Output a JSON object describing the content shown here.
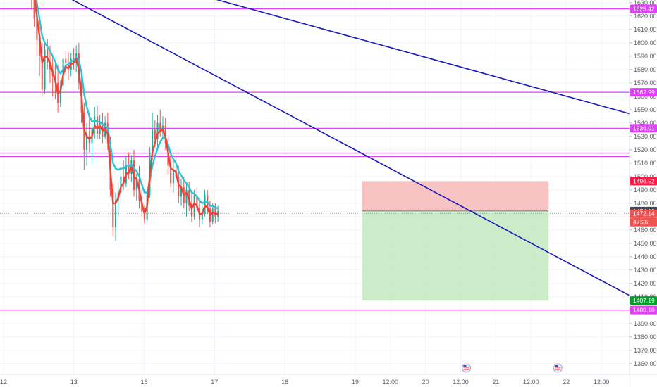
{
  "chart_data": {
    "type": "candlestick",
    "title": "",
    "y_axis": {
      "range": [
        1352,
        1632
      ],
      "ticks": [
        1360,
        1370,
        1380,
        1390,
        1400,
        1410,
        1420,
        1430,
        1440,
        1450,
        1460,
        1470,
        1480,
        1490,
        1500,
        1510,
        1520,
        1530,
        1540,
        1550,
        1560,
        1570,
        1580,
        1590,
        1600,
        1610,
        1620,
        1630
      ]
    },
    "x_axis": {
      "ticks": [
        {
          "label": "12",
          "t": 0
        },
        {
          "label": "13",
          "t": 1
        },
        {
          "label": "16",
          "t": 2
        },
        {
          "label": "17",
          "t": 3
        },
        {
          "label": "18",
          "t": 4
        },
        {
          "label": "19",
          "t": 5
        },
        {
          "label": "12:00",
          "t": 5.5
        },
        {
          "label": "20",
          "t": 6
        },
        {
          "label": "12:00",
          "t": 6.5
        },
        {
          "label": "21",
          "t": 7
        },
        {
          "label": "12:00",
          "t": 7.5
        },
        {
          "label": "22",
          "t": 8
        },
        {
          "label": "12:00",
          "t": 8.5
        }
      ],
      "range_t": [
        -0.05,
        8.9
      ]
    },
    "horizontal_levels": [
      {
        "value": 1625.42,
        "label": "1625.42",
        "color": "#e040fb"
      },
      {
        "value": 1562.99,
        "label": "1562.99",
        "color": "#e040fb"
      },
      {
        "value": 1536.01,
        "label": "1536.01",
        "color": "#e040fb"
      },
      {
        "value": 1517.5,
        "label": "",
        "color": "#e040fb"
      },
      {
        "value": 1515.0,
        "label": "",
        "color": "#e040fb"
      },
      {
        "value": 1400.1,
        "label": "1400.10",
        "color": "#e040fb"
      }
    ],
    "price_labels": [
      {
        "value": 1496.52,
        "label": "1496.52",
        "color": "#ff1744"
      },
      {
        "value": 1474.19,
        "label": "1474.19",
        "color": "#434651"
      },
      {
        "value": 1472.14,
        "label": "1472.14",
        "color": "#ef5350"
      },
      {
        "value": 1407.19,
        "label": "1407.19",
        "color": "#00a028"
      }
    ],
    "countdown_label": "47:26",
    "trendlines": [
      {
        "t1": 0.52,
        "v1": 1645,
        "t2": 8.9,
        "v2": 1411,
        "color": "#1a1ab8"
      },
      {
        "t1": 2.5,
        "v1": 1640,
        "t2": 8.9,
        "v2": 1547,
        "color": "#1a1ab8"
      }
    ],
    "position": {
      "t_start": 5.1,
      "t_end": 7.75,
      "entry": 1474.19,
      "stop": 1496.52,
      "target": 1407.19,
      "risk_color": "#f7b9b9",
      "reward_color": "#c3e9c0"
    },
    "ohlc_t0": 0.4,
    "ohlc_dt": 0.0373,
    "ohlc": [
      [
        1650,
        1652,
        1625,
        1632
      ],
      [
        1632,
        1635,
        1612,
        1618
      ],
      [
        1618,
        1628,
        1590,
        1602
      ],
      [
        1602,
        1612,
        1575,
        1590
      ],
      [
        1590,
        1600,
        1560,
        1565
      ],
      [
        1565,
        1600,
        1562,
        1595
      ],
      [
        1595,
        1603,
        1580,
        1585
      ],
      [
        1585,
        1598,
        1570,
        1580
      ],
      [
        1580,
        1590,
        1560,
        1575
      ],
      [
        1575,
        1585,
        1558,
        1570
      ],
      [
        1570,
        1583,
        1548,
        1555
      ],
      [
        1555,
        1572,
        1552,
        1568
      ],
      [
        1568,
        1590,
        1565,
        1588
      ],
      [
        1588,
        1594,
        1578,
        1585
      ],
      [
        1585,
        1593,
        1572,
        1580
      ],
      [
        1580,
        1592,
        1575,
        1588
      ],
      [
        1588,
        1596,
        1580,
        1585
      ],
      [
        1585,
        1598,
        1578,
        1592
      ],
      [
        1592,
        1600,
        1565,
        1570
      ],
      [
        1570,
        1578,
        1540,
        1548
      ],
      [
        1548,
        1555,
        1505,
        1520
      ],
      [
        1520,
        1540,
        1508,
        1530
      ],
      [
        1530,
        1545,
        1518,
        1525
      ],
      [
        1525,
        1540,
        1510,
        1535
      ],
      [
        1535,
        1552,
        1528,
        1545
      ],
      [
        1545,
        1553,
        1528,
        1532
      ],
      [
        1532,
        1546,
        1528,
        1540
      ],
      [
        1540,
        1548,
        1525,
        1530
      ],
      [
        1530,
        1545,
        1528,
        1540
      ],
      [
        1540,
        1548,
        1520,
        1525
      ],
      [
        1525,
        1530,
        1485,
        1490
      ],
      [
        1490,
        1495,
        1455,
        1462
      ],
      [
        1462,
        1488,
        1452,
        1482
      ],
      [
        1482,
        1495,
        1470,
        1488
      ],
      [
        1488,
        1505,
        1480,
        1500
      ],
      [
        1500,
        1512,
        1490,
        1495
      ],
      [
        1495,
        1515,
        1492,
        1508
      ],
      [
        1508,
        1518,
        1498,
        1502
      ],
      [
        1502,
        1516,
        1496,
        1512
      ],
      [
        1512,
        1520,
        1485,
        1490
      ],
      [
        1490,
        1502,
        1482,
        1498
      ],
      [
        1498,
        1508,
        1476,
        1482
      ],
      [
        1482,
        1490,
        1470,
        1474
      ],
      [
        1474,
        1478,
        1465,
        1468
      ],
      [
        1468,
        1490,
        1466,
        1486
      ],
      [
        1486,
        1522,
        1484,
        1518
      ],
      [
        1518,
        1548,
        1512,
        1535
      ],
      [
        1535,
        1542,
        1522,
        1528
      ],
      [
        1528,
        1546,
        1520,
        1540
      ],
      [
        1540,
        1550,
        1530,
        1534
      ],
      [
        1534,
        1545,
        1528,
        1538
      ],
      [
        1538,
        1544,
        1520,
        1525
      ],
      [
        1525,
        1530,
        1502,
        1508
      ],
      [
        1508,
        1518,
        1492,
        1495
      ],
      [
        1495,
        1512,
        1488,
        1505
      ],
      [
        1505,
        1515,
        1490,
        1500
      ],
      [
        1500,
        1508,
        1480,
        1485
      ],
      [
        1485,
        1498,
        1478,
        1492
      ],
      [
        1492,
        1500,
        1476,
        1480
      ],
      [
        1480,
        1494,
        1470,
        1490
      ],
      [
        1490,
        1496,
        1474,
        1478
      ],
      [
        1478,
        1488,
        1466,
        1470
      ],
      [
        1470,
        1490,
        1468,
        1486
      ],
      [
        1486,
        1492,
        1472,
        1476
      ],
      [
        1476,
        1484,
        1462,
        1468
      ],
      [
        1468,
        1478,
        1464,
        1472
      ],
      [
        1472,
        1490,
        1470,
        1486
      ],
      [
        1486,
        1490,
        1472,
        1476
      ],
      [
        1476,
        1482,
        1462,
        1466
      ],
      [
        1466,
        1480,
        1464,
        1476
      ],
      [
        1476,
        1480,
        1465,
        1470
      ],
      [
        1470,
        1478,
        1466,
        1474
      ]
    ],
    "ema_fast": {
      "color": "#ef4035",
      "values": [
        1645,
        1636,
        1620,
        1605,
        1585,
        1590,
        1589,
        1585,
        1578,
        1572,
        1562,
        1564,
        1576,
        1582,
        1581,
        1584,
        1585,
        1588,
        1580,
        1560,
        1535,
        1530,
        1528,
        1530,
        1538,
        1536,
        1538,
        1534,
        1536,
        1532,
        1505,
        1480,
        1480,
        1484,
        1492,
        1495,
        1502,
        1503,
        1507,
        1500,
        1498,
        1490,
        1480,
        1472,
        1478,
        1500,
        1518,
        1525,
        1532,
        1534,
        1535,
        1530,
        1518,
        1506,
        1505,
        1503,
        1494,
        1492,
        1486,
        1488,
        1483,
        1476,
        1480,
        1478,
        1472,
        1472,
        1478,
        1477,
        1471,
        1473,
        1472,
        1472
      ]
    },
    "ema_slow": {
      "color": "#26c6da",
      "values": [
        1648,
        1643,
        1630,
        1618,
        1605,
        1600,
        1597,
        1594,
        1590,
        1586,
        1580,
        1577,
        1580,
        1583,
        1584,
        1586,
        1587,
        1589,
        1587,
        1578,
        1562,
        1552,
        1545,
        1541,
        1542,
        1541,
        1541,
        1539,
        1538,
        1536,
        1524,
        1510,
        1506,
        1505,
        1506,
        1506,
        1508,
        1508,
        1509,
        1506,
        1504,
        1500,
        1494,
        1488,
        1488,
        1496,
        1508,
        1515,
        1521,
        1526,
        1529,
        1529,
        1524,
        1517,
        1513,
        1510,
        1504,
        1501,
        1497,
        1495,
        1492,
        1488,
        1487,
        1485,
        1482,
        1480,
        1481,
        1481,
        1478,
        1478,
        1477,
        1476
      ]
    },
    "up_color": "#26a69a",
    "down_color": "#ef5350"
  }
}
